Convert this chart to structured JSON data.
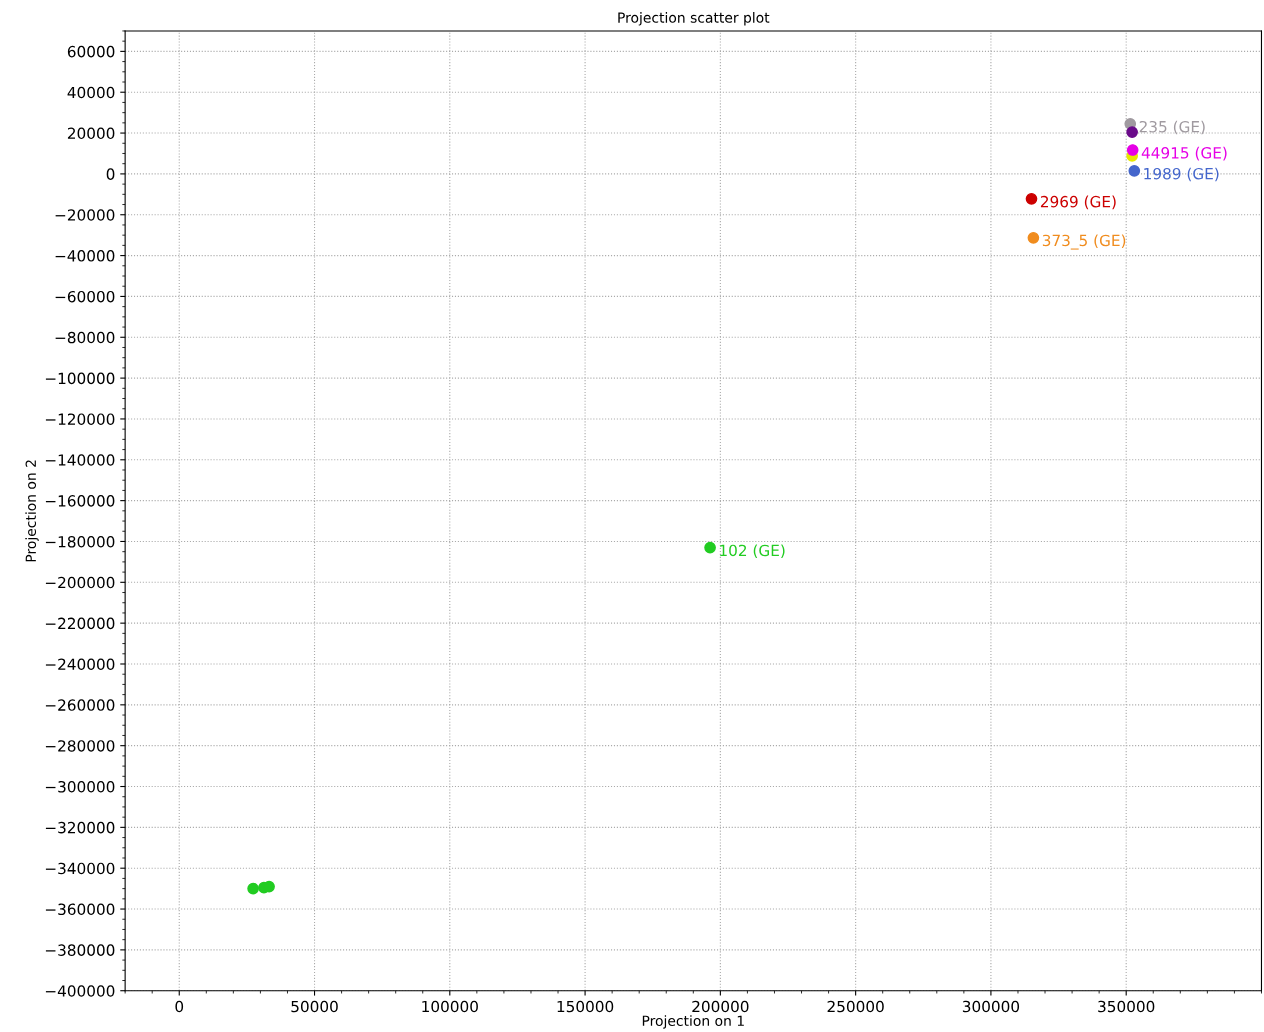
{
  "chart_data": {
    "type": "scatter",
    "title": "Projection scatter plot",
    "xlabel": "Projection on 1",
    "ylabel": "Projection on 2",
    "xlim": [
      -20000,
      400000
    ],
    "ylim": [
      -400000,
      70000
    ],
    "xticks": [
      0,
      50000,
      100000,
      150000,
      200000,
      250000,
      300000,
      350000
    ],
    "yticks": [
      60000,
      40000,
      20000,
      0,
      -20000,
      -40000,
      -60000,
      -80000,
      -100000,
      -120000,
      -140000,
      -160000,
      -180000,
      -200000,
      -220000,
      -240000,
      -260000,
      -280000,
      -300000,
      -320000,
      -340000,
      -360000,
      -380000,
      -400000
    ],
    "grid": true,
    "marker": "circle",
    "legend": false,
    "series": [
      {
        "color": "#22cc22",
        "x": [
          27300,
          31300,
          33200
        ],
        "values": [
          -350000,
          -349500,
          -349000
        ]
      },
      {
        "name": "102 (GE)",
        "color": "#22cc22",
        "x": [
          196200
        ],
        "values": [
          -183000
        ]
      },
      {
        "name": "2969 (GE)",
        "color": "#cc0000",
        "x": [
          315000
        ],
        "values": [
          -12200
        ]
      },
      {
        "name": "373_5 (GE)",
        "color": "#f08c1e",
        "x": [
          315700
        ],
        "values": [
          -31300
        ]
      },
      {
        "name": "1989 (GE)",
        "color": "#4466cc",
        "x": [
          353000
        ],
        "values": [
          1500
        ]
      },
      {
        "color": "#e8e800",
        "x": [
          352200
        ],
        "values": [
          8800
        ]
      },
      {
        "name": "44915 (GE)",
        "color": "#e600e6",
        "x": [
          352400
        ],
        "values": [
          11700
        ]
      },
      {
        "name": "235 (GE)",
        "color": "#a09aa0",
        "x": [
          351500
        ],
        "values": [
          24500
        ]
      },
      {
        "color": "#6a0a8a",
        "x": [
          352200
        ],
        "values": [
          20500
        ]
      }
    ]
  }
}
